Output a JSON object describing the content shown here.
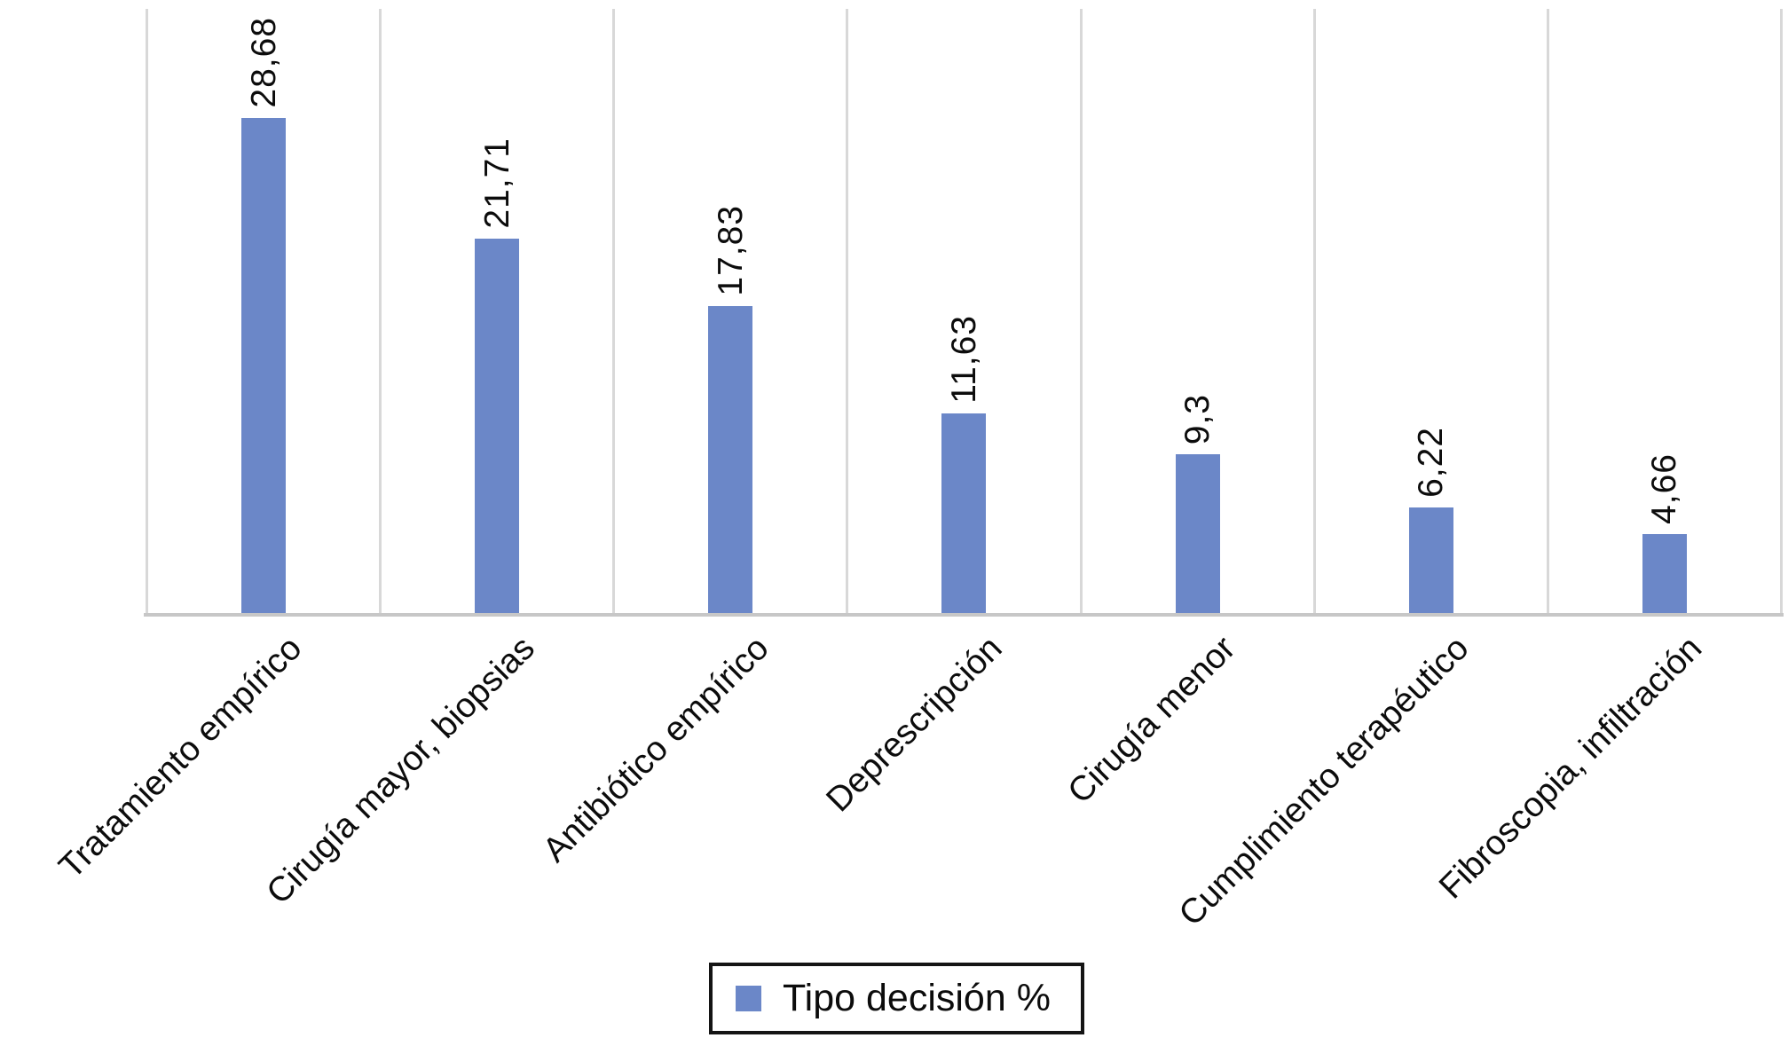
{
  "chart_data": {
    "type": "bar",
    "title": "",
    "xlabel": "",
    "ylabel": "",
    "categories": [
      "Tratamiento empírico",
      "Cirugía mayor, biopsias",
      "Antibiótico empírico",
      "Deprescripción",
      "Cirugía menor",
      "Cumplimiento terapéutico",
      "Fibroscopia, infiltración"
    ],
    "values": [
      28.68,
      21.71,
      17.83,
      11.63,
      9.3,
      6.22,
      4.66
    ],
    "value_labels": [
      "28,68",
      "21,71",
      "17,83",
      "11,63",
      "9,3",
      "6,22",
      "4,66"
    ],
    "ylim": [
      0,
      35
    ],
    "grid": "vertical-gridlines-only",
    "legend": {
      "label": "Tipo decisión %",
      "position": "bottom-center",
      "border": true
    },
    "colors": {
      "bar": "#6b87c8",
      "gridline": "#d8d8d8",
      "axis_line": "#c7c7c7",
      "text": "#0c0c0c",
      "legend_border": "#141414",
      "background": "#ffffff"
    },
    "label_rotation_deg": {
      "value_labels": 90,
      "category_labels": 45
    }
  }
}
